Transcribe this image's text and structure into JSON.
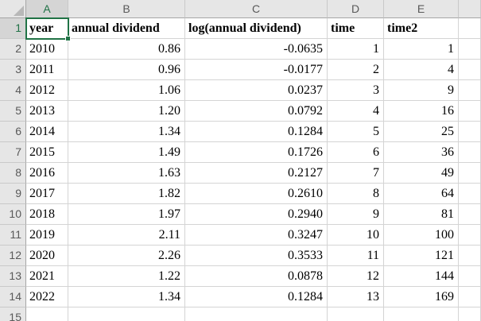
{
  "app": {
    "type": "spreadsheet",
    "selected_cell": "A1",
    "selected_cell_value": "year"
  },
  "colors": {
    "selection_green": "#217346",
    "header_bg": "#E6E6E6",
    "selected_header_bg": "#D5D5D5",
    "header_text": "#595959",
    "selected_header_text": "#1F7145",
    "gridline": "#D4D4D4",
    "cell_text": "#000000"
  },
  "grid": {
    "column_letters": [
      "A",
      "B",
      "C",
      "D",
      "E"
    ],
    "row_numbers": [
      "1",
      "2",
      "3",
      "4",
      "5",
      "6",
      "7",
      "8",
      "9",
      "10",
      "11",
      "12",
      "13",
      "14",
      "15"
    ],
    "field_headers": [
      "year",
      "annual dividend",
      "log(annual dividend)",
      "time",
      "time2"
    ],
    "cells": [
      [
        "year",
        "annual dividend",
        "log(annual dividend)",
        "time",
        "time2"
      ],
      [
        "2010",
        "0.86",
        "-0.0635",
        "1",
        "1"
      ],
      [
        "2011",
        "0.96",
        "-0.0177",
        "2",
        "4"
      ],
      [
        "2012",
        "1.06",
        "0.0237",
        "3",
        "9"
      ],
      [
        "2013",
        "1.20",
        "0.0792",
        "4",
        "16"
      ],
      [
        "2014",
        "1.34",
        "0.1284",
        "5",
        "25"
      ],
      [
        "2015",
        "1.49",
        "0.1726",
        "6",
        "36"
      ],
      [
        "2016",
        "1.63",
        "0.2127",
        "7",
        "49"
      ],
      [
        "2017",
        "1.82",
        "0.2610",
        "8",
        "64"
      ],
      [
        "2018",
        "1.97",
        "0.2940",
        "9",
        "81"
      ],
      [
        "2019",
        "2.11",
        "0.3247",
        "10",
        "100"
      ],
      [
        "2020",
        "2.26",
        "0.3533",
        "11",
        "121"
      ],
      [
        "2021",
        "1.22",
        "0.0878",
        "12",
        "144"
      ],
      [
        "2022",
        "1.34",
        "0.1284",
        "13",
        "169"
      ],
      [
        "",
        "",
        "",
        "",
        ""
      ]
    ]
  }
}
